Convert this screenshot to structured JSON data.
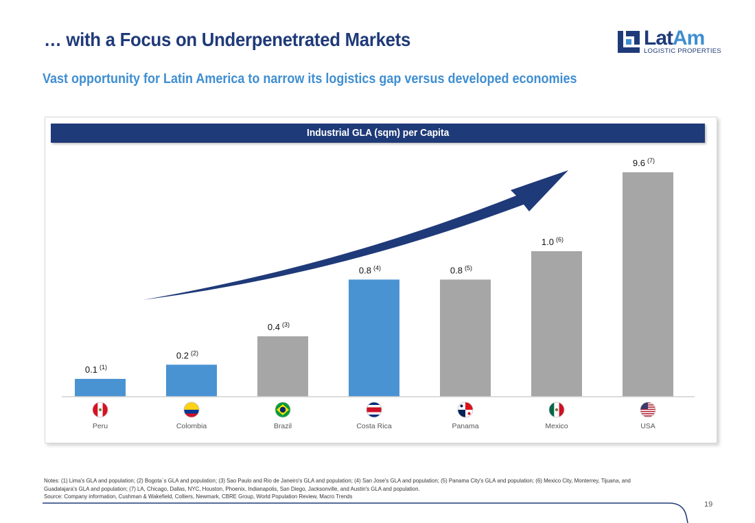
{
  "header": {
    "title": "… with a Focus on Underpenetrated Markets",
    "subtitle": "Vast opportunity for Latin America to narrow its logistics gap versus developed economies"
  },
  "logo": {
    "word_part1": "Lat",
    "word_part2": "Am",
    "tagline": "LOGISTIC PROPERTIES"
  },
  "colors": {
    "brand_navy": "#1f3a79",
    "brand_blue": "#3f8ed1",
    "bar_latam": "#4a93d3",
    "bar_other": "#a6a6a6"
  },
  "chart_data": {
    "type": "bar",
    "title": "Industrial GLA (sqm) per Capita",
    "categories": [
      "Peru",
      "Colombia",
      "Brazil",
      "Costa Rica",
      "Panama",
      "Mexico",
      "USA"
    ],
    "values": [
      0.1,
      0.2,
      0.4,
      0.8,
      0.8,
      1.0,
      9.6
    ],
    "value_labels": [
      "0.1",
      "0.2",
      "0.4",
      "0.8",
      "0.8",
      "1.0",
      "9.6"
    ],
    "footnote_refs": [
      "(1)",
      "(2)",
      "(3)",
      "(4)",
      "(5)",
      "(6)",
      "(7)"
    ],
    "flags": [
      "peru-flag-icon",
      "colombia-flag-icon",
      "brazil-flag-icon",
      "costa-rica-flag-icon",
      "panama-flag-icon",
      "mexico-flag-icon",
      "usa-flag-icon"
    ],
    "bar_colors": [
      "#4a93d3",
      "#4a93d3",
      "#a6a6a6",
      "#4a93d3",
      "#a6a6a6",
      "#a6a6a6",
      "#a6a6a6"
    ],
    "y_axis_scale": "broken (not proportional)",
    "grid": false,
    "annotation": "upward trend arrow"
  },
  "notes": {
    "line1": "Notes: (1) Lima's GLA and population; (2) Bogota´s GLA and population; (3) Sao Paulo and Rio de Janeiro's GLA and population; (4) San Jose's GLA and population; (5) Panama City's GLA and population; (6) Mexico City, Monterrey, Tijuana, and",
    "line2": "Guadalajara's GLA and population; (7) LA, Chicago, Dallas, NYC, Houston, Phoenix, Indianapolis, San Diego, Jacksonville, and Austin's GLA and population.",
    "source": "Source: Company information, Cushman & Wakefield, Colliers, Newmark, CBRE Group, World Population Review, Macro Trends"
  },
  "page_number": "19"
}
